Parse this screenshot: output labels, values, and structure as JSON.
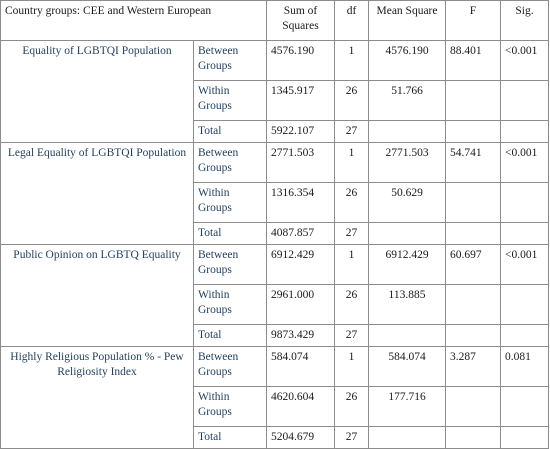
{
  "table": {
    "caption": "Country groups: CEE and Western European",
    "headers": {
      "sum_of_squares": "Sum of Squares",
      "df": "df",
      "mean_square": "Mean Square",
      "f": "F",
      "sig": "Sig."
    },
    "groups": [
      {
        "variable": "Equality of LGBTQI Population",
        "between": {
          "label": "Between Groups",
          "ss": "4576.190",
          "df": "1",
          "ms": "4576.190",
          "f": "88.401",
          "sig": "<0.001"
        },
        "within": {
          "label": "Within Groups",
          "ss": "1345.917",
          "df": "26",
          "ms": "51.766"
        },
        "total": {
          "label": "Total",
          "ss": "5922.107",
          "df": "27"
        }
      },
      {
        "variable": "Legal Equality of LGBTQI Population",
        "between": {
          "label": "Between Groups",
          "ss": "2771.503",
          "df": "1",
          "ms": "2771.503",
          "f": "54.741",
          "sig": "<0.001"
        },
        "within": {
          "label": "Within Groups",
          "ss": "1316.354",
          "df": "26",
          "ms": "50.629"
        },
        "total": {
          "label": "Total",
          "ss": "4087.857",
          "df": "27"
        }
      },
      {
        "variable": "Public Opinion on LGBTQ Equality",
        "between": {
          "label": "Between Groups",
          "ss": "6912.429",
          "df": "1",
          "ms": "6912.429",
          "f": "60.697",
          "sig": "<0.001"
        },
        "within": {
          "label": "Within Groups",
          "ss": "2961.000",
          "df": "26",
          "ms": "113.885"
        },
        "total": {
          "label": "Total",
          "ss": "9873.429",
          "df": "27"
        }
      },
      {
        "variable": "Highly Religious Population % - Pew Religiosity Index",
        "between": {
          "label": "Between Groups",
          "ss": "584.074",
          "df": "1",
          "ms": "584.074",
          "f": "3.287",
          "sig": "0.081"
        },
        "within": {
          "label": "Within Groups",
          "ss": "4620.604",
          "df": "26",
          "ms": "177.716"
        },
        "total": {
          "label": "Total",
          "ss": "5204.679",
          "df": "27"
        }
      }
    ]
  }
}
